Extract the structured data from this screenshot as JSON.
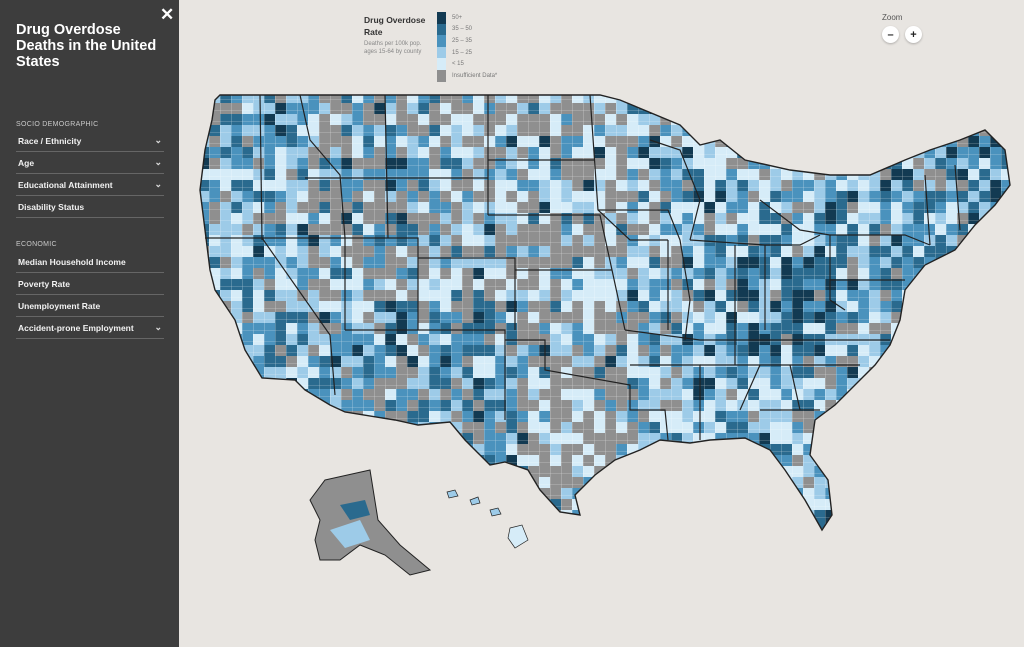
{
  "sidebar": {
    "close_label": "✕",
    "title": "Drug Overdose Deaths in the United States",
    "sections": [
      {
        "label": "SOCIO DEMOGRAPHIC",
        "items": [
          {
            "label": "Race / Ethnicity",
            "expandable": true
          },
          {
            "label": "Age",
            "expandable": true
          },
          {
            "label": "Educational Attainment",
            "expandable": true
          },
          {
            "label": "Disability Status",
            "expandable": false
          }
        ]
      },
      {
        "label": "ECONOMIC",
        "items": [
          {
            "label": "Median Household Income",
            "expandable": false
          },
          {
            "label": "Poverty Rate",
            "expandable": false
          },
          {
            "label": "Unemployment Rate",
            "expandable": false
          },
          {
            "label": "Accident-prone Employment",
            "expandable": true
          }
        ]
      }
    ]
  },
  "legend": {
    "title": "Drug Overdose Rate",
    "subtitle": "Deaths per 100k pop. ages 15-64 by county",
    "bins": [
      {
        "label": "50+",
        "color": "#123a52"
      },
      {
        "label": "35 – 50",
        "color": "#2a6a8e"
      },
      {
        "label": "25 – 35",
        "color": "#4a92bd"
      },
      {
        "label": "15 – 25",
        "color": "#9dcbe8"
      },
      {
        "label": "< 15",
        "color": "#d6ecf8"
      },
      {
        "label": "Insufficient Data*",
        "color": "#8f8f8f"
      }
    ]
  },
  "zoom": {
    "label": "Zoom",
    "out": "–",
    "in": "+"
  },
  "colors": {
    "background": "#e8e5e1",
    "sidebar": "#3d3d3d",
    "state_border": "#222222",
    "county_border": "#ffffff"
  }
}
